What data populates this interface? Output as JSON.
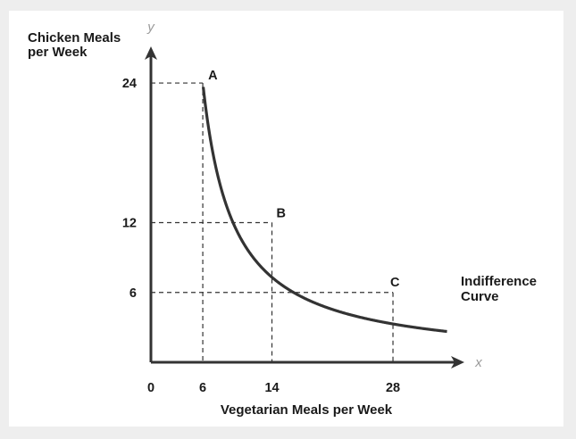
{
  "chart_data": {
    "type": "line",
    "ylabel_lines": [
      "Chicken Meals",
      "per Week"
    ],
    "xlabel": "Vegetarian Meals per Week",
    "x_axis_symbol": "x",
    "y_axis_symbol": "y",
    "origin_label": "0",
    "x_ticks": [
      6,
      14,
      28
    ],
    "y_ticks": [
      24,
      12,
      6
    ],
    "xlim": [
      0,
      34
    ],
    "ylim": [
      0,
      30
    ],
    "points": [
      {
        "label": "A",
        "x": 6,
        "y": 24
      },
      {
        "label": "B",
        "x": 14,
        "y": 12
      },
      {
        "label": "C",
        "x": 28,
        "y": 6
      }
    ],
    "curve_label_lines": [
      "Indifference",
      "Curve"
    ],
    "colors": {
      "curve": "#333333",
      "axes": "#333333",
      "guides": "#333333",
      "text": "#1a1a1a",
      "axis_symbol": "#9a9a9a"
    }
  }
}
